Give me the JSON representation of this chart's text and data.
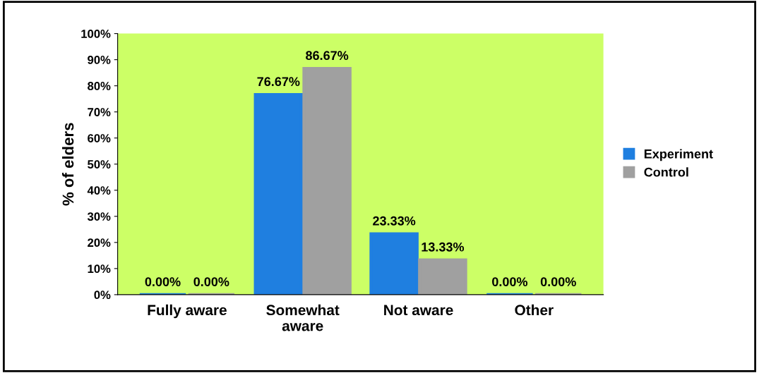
{
  "chart_data": {
    "type": "bar",
    "ylabel": "% of elders",
    "categories": [
      "Fully aware",
      "Somewhat\naware",
      "Not aware",
      "Other"
    ],
    "series": [
      {
        "name": "Experiment",
        "color": "#1f7fe0",
        "values": [
          0.0,
          76.67,
          23.33,
          0.0
        ],
        "value_labels": [
          "0.00%",
          "76.67%",
          "23.33%",
          "0.00%"
        ]
      },
      {
        "name": "Control",
        "color": "#a0a0a0",
        "values": [
          0.0,
          86.67,
          13.33,
          0.0
        ],
        "value_labels": [
          "0.00%",
          "86.67%",
          "13.33%",
          "0.00%"
        ]
      }
    ],
    "ylim": [
      0,
      100
    ],
    "yticks": [
      {
        "value": 0,
        "label": "0%"
      },
      {
        "value": 10,
        "label": "10%"
      },
      {
        "value": 20,
        "label": "20%"
      },
      {
        "value": 30,
        "label": "30%"
      },
      {
        "value": 40,
        "label": "40%"
      },
      {
        "value": 50,
        "label": "50%"
      },
      {
        "value": 60,
        "label": "60%"
      },
      {
        "value": 70,
        "label": "70%"
      },
      {
        "value": 80,
        "label": "80%"
      },
      {
        "value": 90,
        "label": "90%"
      },
      {
        "value": 100,
        "label": "100%"
      }
    ],
    "grid": false,
    "legend": "right"
  }
}
